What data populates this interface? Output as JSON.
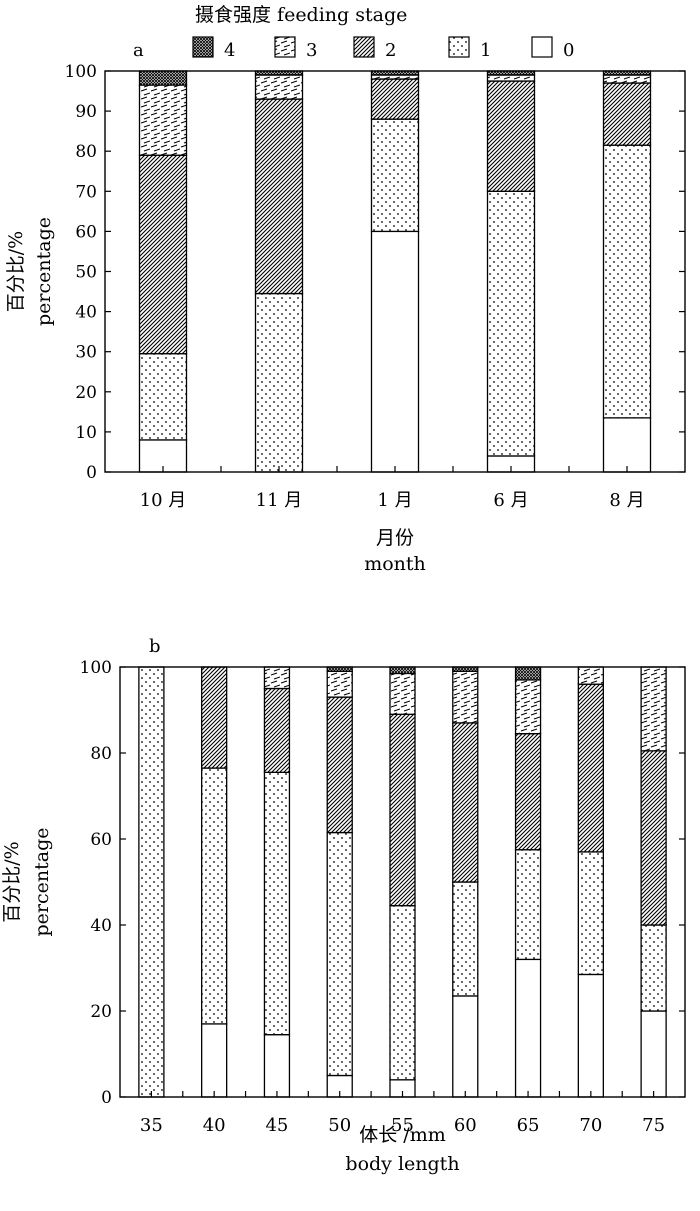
{
  "legend": {
    "title": "摄食强度 feeding stage",
    "items": [
      {
        "label": "4",
        "pattern": "crosshatch"
      },
      {
        "label": "3",
        "pattern": "dash"
      },
      {
        "label": "2",
        "pattern": "diag"
      },
      {
        "label": "1",
        "pattern": "dots"
      },
      {
        "label": "0",
        "pattern": "blank"
      }
    ]
  },
  "colors": {
    "line": "#000000",
    "background": "#ffffff"
  },
  "chart_data": [
    {
      "type": "bar",
      "stacked": true,
      "panel_label": "a",
      "categories": [
        "10 月",
        "11 月",
        "1 月",
        "6 月",
        "8 月"
      ],
      "series": [
        {
          "name": "0",
          "values": [
            8,
            0,
            60,
            4,
            13.5
          ]
        },
        {
          "name": "1",
          "values": [
            21.5,
            44.5,
            28,
            66,
            68
          ]
        },
        {
          "name": "2",
          "values": [
            49.5,
            48.5,
            10,
            27.5,
            15.5
          ]
        },
        {
          "name": "3",
          "values": [
            17.5,
            6,
            1,
            1.5,
            2
          ]
        },
        {
          "name": "4",
          "values": [
            3.5,
            1,
            1,
            1,
            1
          ]
        }
      ],
      "ylabel_cn": "百分比/%",
      "ylabel_en": "percentage",
      "xlabel_cn": "月份",
      "xlabel_en": "month",
      "ylim": [
        0,
        100
      ],
      "yticks": [
        0,
        10,
        20,
        30,
        40,
        50,
        60,
        70,
        80,
        90,
        100
      ],
      "grid": false
    },
    {
      "type": "bar",
      "stacked": true,
      "panel_label": "b",
      "categories": [
        "35",
        "40",
        "45",
        "50",
        "55",
        "60",
        "65",
        "70",
        "75"
      ],
      "series": [
        {
          "name": "0",
          "values": [
            0,
            17,
            14.5,
            5,
            4,
            23.5,
            32,
            28.5,
            20
          ]
        },
        {
          "name": "1",
          "values": [
            100,
            59.5,
            61,
            56.5,
            40.5,
            26.5,
            25.5,
            28.5,
            20
          ]
        },
        {
          "name": "2",
          "values": [
            0,
            23.5,
            19.5,
            31.5,
            44.5,
            37,
            27,
            39,
            40.5
          ]
        },
        {
          "name": "3",
          "values": [
            0,
            0,
            5,
            6,
            9.5,
            12,
            12.5,
            4,
            19.5
          ]
        },
        {
          "name": "4",
          "values": [
            0,
            0,
            0,
            1,
            1.5,
            1,
            3,
            0,
            0
          ]
        }
      ],
      "ylabel_cn": "百分比/%",
      "ylabel_en": "percentage",
      "xlabel_cn": "体长 /mm",
      "xlabel_en": "body length",
      "ylim": [
        0,
        100
      ],
      "yticks": [
        0,
        20,
        40,
        60,
        80,
        100
      ],
      "grid": false
    }
  ]
}
